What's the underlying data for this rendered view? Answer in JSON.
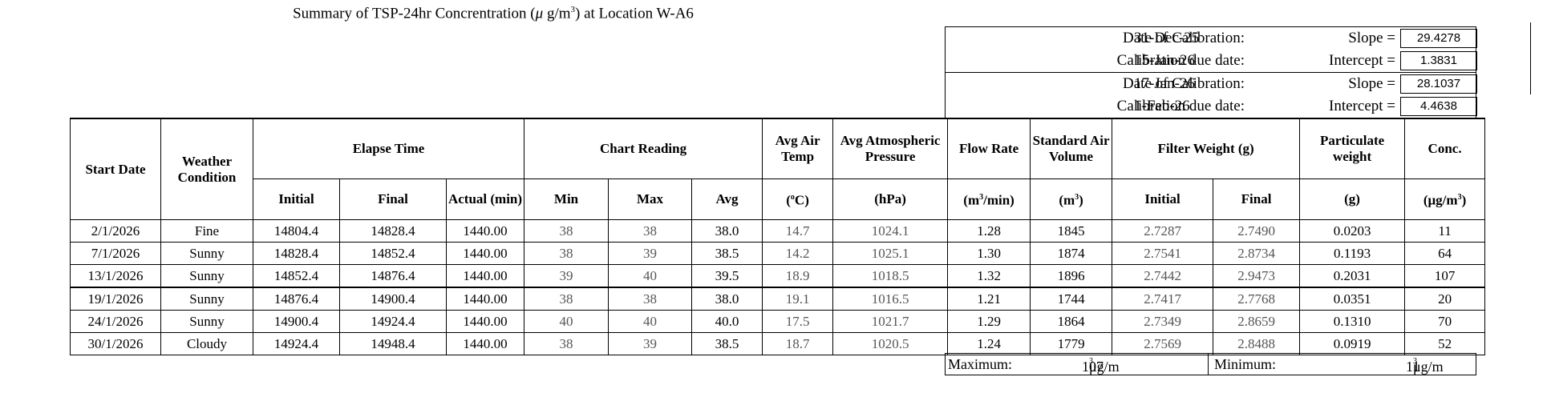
{
  "title_pre": "Summary of TSP-24hr Concrentration (",
  "title_mu": "μ",
  "title_unit": " g/m",
  "title_exp": "3",
  "title_post": ") at Location W-A6",
  "calibration": [
    {
      "date_label": "Date of Calibration:",
      "date": "31-Dec-25",
      "key_label": "Slope =",
      "key_value": "29.4278"
    },
    {
      "date_label": "Calibration due date:",
      "date": "15-Jan-26",
      "key_label": "Intercept =",
      "key_value": "1.3831"
    },
    {
      "date_label": "Date of Calibration:",
      "date": "17-Jan-26",
      "key_label": "Slope =",
      "key_value": "28.1037"
    },
    {
      "date_label": "Calibration due date:",
      "date": "1-Feb-26",
      "key_label": "Intercept =",
      "key_value": "4.4638"
    }
  ],
  "headers": {
    "start_date": "Start Date",
    "weather": "Weather Condition",
    "elapse": "Elapse Time",
    "chart": "Chart Reading",
    "air_temp": "Avg Air Temp",
    "pressure": "Avg Atmospheric Pressure",
    "flow": "Flow Rate",
    "std_air": "Standard Air Volume",
    "filter": "Filter Weight (g)",
    "particulate": "Particulate weight",
    "conc": "Conc.",
    "initial": "Initial",
    "final": "Final",
    "actual": "Actual (min)",
    "min": "Min",
    "max": "Max",
    "avg": "Avg",
    "temp_unit_pre": "(",
    "temp_unit_o": "o",
    "temp_unit_post": "C)",
    "hpa": "(hPa)",
    "flow_unit_pre": "(m",
    "flow_unit_exp": "3",
    "flow_unit_post": "/min)",
    "vol_unit_pre": "(m",
    "vol_unit_exp": "3",
    "vol_unit_post": ")",
    "f_initial": "Initial",
    "f_final": "Final",
    "g_unit": "(g)",
    "conc_unit_pre": "(μg/m",
    "conc_unit_exp": "3",
    "conc_unit_post": ")"
  },
  "rows": [
    {
      "date": "2/1/2026",
      "weather": "Fine",
      "initial": "14804.4",
      "final": "14828.4",
      "actual": "1440.00",
      "min": "38",
      "max": "38",
      "avg": "38.0",
      "temp": "14.7",
      "pressure": "1024.1",
      "flow": "1.28",
      "std_air": "1845",
      "f_initial": "2.7287",
      "f_final": "2.7490",
      "particulate": "0.0203",
      "conc": "11"
    },
    {
      "date": "7/1/2026",
      "weather": "Sunny",
      "initial": "14828.4",
      "final": "14852.4",
      "actual": "1440.00",
      "min": "38",
      "max": "39",
      "avg": "38.5",
      "temp": "14.2",
      "pressure": "1025.1",
      "flow": "1.30",
      "std_air": "1874",
      "f_initial": "2.7541",
      "f_final": "2.8734",
      "particulate": "0.1193",
      "conc": "64"
    },
    {
      "date": "13/1/2026",
      "weather": "Sunny",
      "initial": "14852.4",
      "final": "14876.4",
      "actual": "1440.00",
      "min": "39",
      "max": "40",
      "avg": "39.5",
      "temp": "18.9",
      "pressure": "1018.5",
      "flow": "1.32",
      "std_air": "1896",
      "f_initial": "2.7442",
      "f_final": "2.9473",
      "particulate": "0.2031",
      "conc": "107"
    },
    {
      "date": "19/1/2026",
      "weather": "Sunny",
      "initial": "14876.4",
      "final": "14900.4",
      "actual": "1440.00",
      "min": "38",
      "max": "38",
      "avg": "38.0",
      "temp": "19.1",
      "pressure": "1016.5",
      "flow": "1.21",
      "std_air": "1744",
      "f_initial": "2.7417",
      "f_final": "2.7768",
      "particulate": "0.0351",
      "conc": "20"
    },
    {
      "date": "24/1/2026",
      "weather": "Sunny",
      "initial": "14900.4",
      "final": "14924.4",
      "actual": "1440.00",
      "min": "40",
      "max": "40",
      "avg": "40.0",
      "temp": "17.5",
      "pressure": "1021.7",
      "flow": "1.29",
      "std_air": "1864",
      "f_initial": "2.7349",
      "f_final": "2.8659",
      "particulate": "0.1310",
      "conc": "70"
    },
    {
      "date": "30/1/2026",
      "weather": "Cloudy",
      "initial": "14924.4",
      "final": "14948.4",
      "actual": "1440.00",
      "min": "38",
      "max": "39",
      "avg": "38.5",
      "temp": "18.7",
      "pressure": "1020.5",
      "flow": "1.24",
      "std_air": "1779",
      "f_initial": "2.7569",
      "f_final": "2.8488",
      "particulate": "0.0919",
      "conc": "52"
    }
  ],
  "summary": {
    "max_label": "Maximum:",
    "max_value": "107",
    "min_label": "Minimum:",
    "min_value": "11",
    "unit_pre": "μg/m",
    "unit_exp": "3"
  }
}
